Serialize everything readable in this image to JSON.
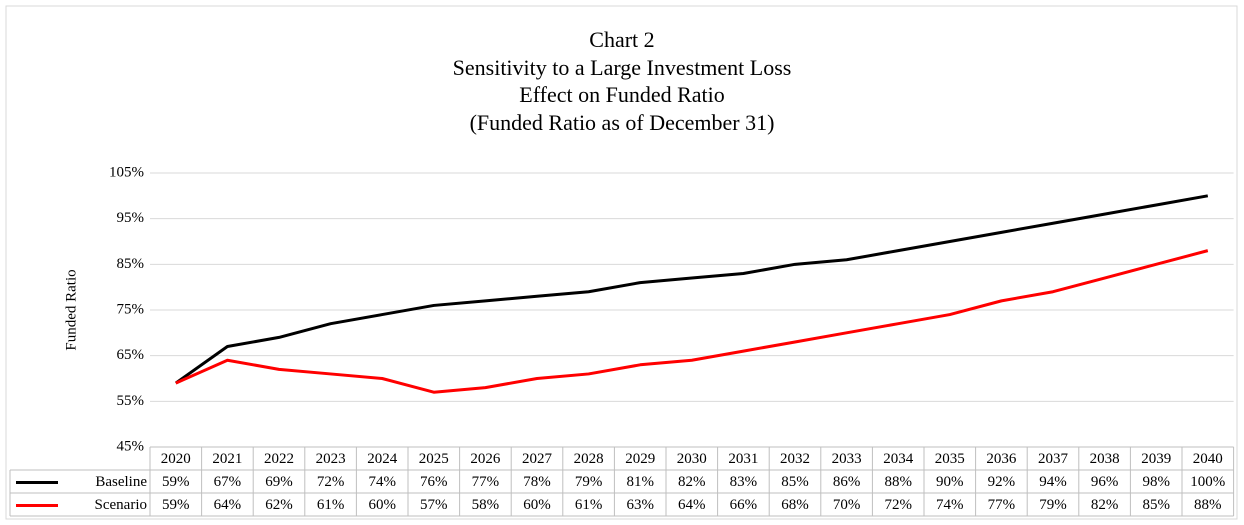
{
  "chart_data": {
    "type": "line",
    "title": [
      "Chart 2",
      "Sensitivity to a Large Investment Loss",
      "Effect on Funded Ratio",
      "(Funded Ratio as of December 31)"
    ],
    "y_label": "Funded Ratio",
    "categories": [
      "2020",
      "2021",
      "2022",
      "2023",
      "2024",
      "2025",
      "2026",
      "2027",
      "2028",
      "2029",
      "2030",
      "2031",
      "2032",
      "2033",
      "2034",
      "2035",
      "2036",
      "2037",
      "2038",
      "2039",
      "2040"
    ],
    "series": [
      {
        "name": "Baseline",
        "color": "#000000",
        "values": [
          59,
          67,
          69,
          72,
          74,
          76,
          77,
          78,
          79,
          81,
          82,
          83,
          85,
          86,
          88,
          90,
          92,
          94,
          96,
          98,
          100
        ],
        "value_labels": [
          "59%",
          "67%",
          "69%",
          "72%",
          "74%",
          "76%",
          "77%",
          "78%",
          "79%",
          "81%",
          "82%",
          "83%",
          "85%",
          "86%",
          "88%",
          "90%",
          "92%",
          "94%",
          "96%",
          "98%",
          "100%"
        ]
      },
      {
        "name": "Scenario",
        "color": "#ff0000",
        "values": [
          59,
          64,
          62,
          61,
          60,
          57,
          58,
          60,
          61,
          63,
          64,
          66,
          68,
          70,
          72,
          74,
          77,
          79,
          82,
          85,
          88
        ],
        "value_labels": [
          "59%",
          "64%",
          "62%",
          "61%",
          "60%",
          "57%",
          "58%",
          "60%",
          "61%",
          "63%",
          "64%",
          "66%",
          "68%",
          "70%",
          "72%",
          "74%",
          "77%",
          "79%",
          "82%",
          "85%",
          "88%"
        ]
      }
    ],
    "ylim": [
      45,
      105
    ],
    "yticks": [
      {
        "value": 45,
        "label": "45%"
      },
      {
        "value": 55,
        "label": "55%"
      },
      {
        "value": 65,
        "label": "65%"
      },
      {
        "value": 75,
        "label": "75%"
      },
      {
        "value": 85,
        "label": "85%"
      },
      {
        "value": 95,
        "label": "95%"
      },
      {
        "value": 105,
        "label": "105%"
      }
    ],
    "grid": true
  }
}
